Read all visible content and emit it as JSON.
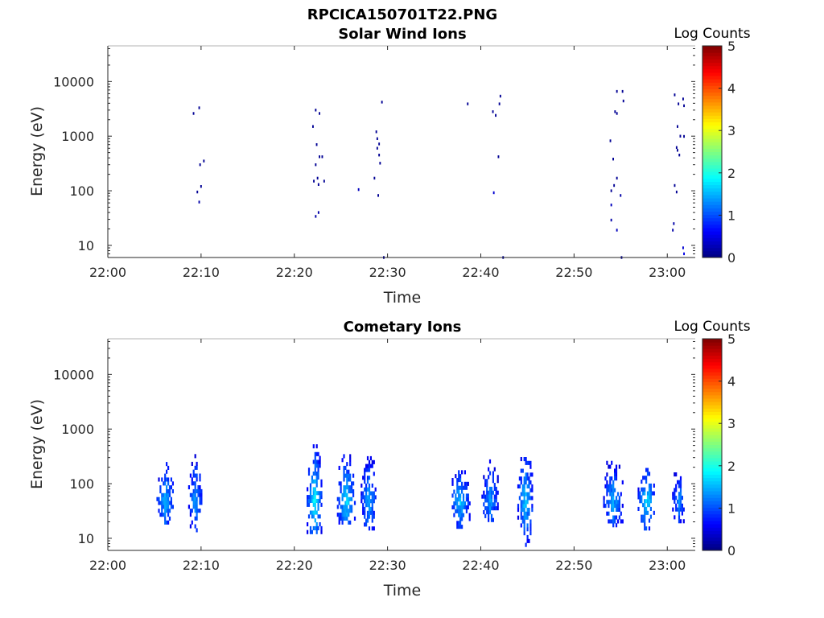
{
  "figure_title": "RPCICA150701T22.PNG",
  "colorbar": {
    "label": "Log Counts",
    "ticks": [
      "0",
      "1",
      "2",
      "3",
      "4",
      "5"
    ],
    "range": [
      0,
      5
    ],
    "colormap": "jet"
  },
  "chart_data": [
    {
      "type": "heatmap",
      "title": "Solar Wind Ions",
      "xlabel": "Time",
      "ylabel": "Energy (eV)",
      "xticks": [
        "22:00",
        "22:10",
        "22:20",
        "22:30",
        "22:40",
        "22:50",
        "23:00"
      ],
      "xlim_minutes": [
        0,
        63
      ],
      "yscale": "log",
      "ylim": [
        6,
        45000
      ],
      "yticks": [
        "10",
        "100",
        "1000",
        "10000"
      ],
      "value_range": [
        0,
        5
      ],
      "cells": [
        [
          9.2,
          2600,
          0.1
        ],
        [
          9.8,
          3300,
          0.1
        ],
        [
          10.3,
          350,
          0.1
        ],
        [
          9.9,
          300,
          0.1
        ],
        [
          10.0,
          120,
          0.1
        ],
        [
          9.6,
          95,
          0.1
        ],
        [
          9.8,
          62,
          0.2
        ],
        [
          22.0,
          1500,
          0.1
        ],
        [
          22.3,
          3000,
          0.1
        ],
        [
          22.7,
          2600,
          0.1
        ],
        [
          22.4,
          700,
          0.1
        ],
        [
          22.7,
          420,
          0.1
        ],
        [
          23.0,
          420,
          0.1
        ],
        [
          22.3,
          300,
          0.1
        ],
        [
          22.1,
          150,
          0.1
        ],
        [
          22.5,
          170,
          0.1
        ],
        [
          22.6,
          130,
          0.1
        ],
        [
          23.2,
          150,
          0.1
        ],
        [
          22.6,
          40,
          0.2
        ],
        [
          22.3,
          34,
          0.2
        ],
        [
          26.9,
          105,
          0.3
        ],
        [
          28.6,
          170,
          0.1
        ],
        [
          28.8,
          1200,
          0.1
        ],
        [
          28.9,
          900,
          0.1
        ],
        [
          29.1,
          720,
          0.1
        ],
        [
          28.9,
          600,
          0.1
        ],
        [
          29.1,
          450,
          0.1
        ],
        [
          29.2,
          320,
          0.1
        ],
        [
          29.0,
          82,
          0.1
        ],
        [
          29.4,
          4200,
          0.1
        ],
        [
          29.6,
          6,
          0.1
        ],
        [
          38.6,
          3900,
          0.1
        ],
        [
          41.3,
          2800,
          0.1
        ],
        [
          41.6,
          2400,
          0.1
        ],
        [
          42.0,
          3900,
          0.1
        ],
        [
          42.1,
          5400,
          0.1
        ],
        [
          41.9,
          420,
          0.1
        ],
        [
          41.4,
          92,
          0.4
        ],
        [
          42.4,
          6,
          0.1
        ],
        [
          53.9,
          820,
          0.1
        ],
        [
          54.2,
          380,
          0.1
        ],
        [
          54.6,
          2600,
          0.1
        ],
        [
          54.4,
          2800,
          0.1
        ],
        [
          54.6,
          6600,
          0.1
        ],
        [
          55.2,
          6600,
          0.1
        ],
        [
          55.3,
          4400,
          0.1
        ],
        [
          54.6,
          170,
          0.1
        ],
        [
          54.3,
          125,
          0.1
        ],
        [
          54.0,
          100,
          0.1
        ],
        [
          55.0,
          82,
          0.2
        ],
        [
          54.0,
          55,
          0.3
        ],
        [
          54.0,
          29,
          0.2
        ],
        [
          54.6,
          19,
          0.3
        ],
        [
          55.1,
          6,
          0.1
        ],
        [
          60.8,
          5700,
          0.1
        ],
        [
          61.2,
          3900,
          0.1
        ],
        [
          61.7,
          4800,
          0.1
        ],
        [
          61.8,
          3600,
          0.1
        ],
        [
          61.1,
          1500,
          0.1
        ],
        [
          61.4,
          1000,
          0.1
        ],
        [
          61.8,
          990,
          0.1
        ],
        [
          61.0,
          620,
          0.1
        ],
        [
          61.1,
          550,
          0.1
        ],
        [
          61.3,
          450,
          0.1
        ],
        [
          60.8,
          125,
          0.1
        ],
        [
          61.0,
          95,
          0.1
        ],
        [
          60.7,
          25,
          0.2
        ],
        [
          60.6,
          19,
          0.2
        ],
        [
          61.7,
          9,
          0.4
        ],
        [
          61.8,
          7,
          0.5
        ]
      ]
    },
    {
      "type": "heatmap",
      "title": "Cometary Ions",
      "xlabel": "Time",
      "ylabel": "Energy (eV)",
      "xticks": [
        "22:00",
        "22:10",
        "22:20",
        "22:30",
        "22:40",
        "22:50",
        "23:00"
      ],
      "xlim_minutes": [
        0,
        63
      ],
      "yscale": "log",
      "ylim": [
        6,
        45000
      ],
      "yticks": [
        "10",
        "100",
        "1000",
        "10000"
      ],
      "value_range": [
        0,
        5
      ],
      "bursts": [
        {
          "center": 6.2,
          "width": 1.8,
          "emin": 18,
          "emax": 230,
          "peak": 1.4
        },
        {
          "center": 9.4,
          "width": 1.4,
          "emin": 13,
          "emax": 300,
          "peak": 1.3
        },
        {
          "center": 22.2,
          "width": 1.6,
          "emin": 12,
          "emax": 470,
          "peak": 1.7
        },
        {
          "center": 25.6,
          "width": 1.9,
          "emin": 18,
          "emax": 330,
          "peak": 1.6
        },
        {
          "center": 28.0,
          "width": 1.6,
          "emin": 14,
          "emax": 280,
          "peak": 1.4
        },
        {
          "center": 37.8,
          "width": 2.0,
          "emin": 15,
          "emax": 180,
          "peak": 1.5
        },
        {
          "center": 41.0,
          "width": 1.7,
          "emin": 20,
          "emax": 250,
          "peak": 1.3
        },
        {
          "center": 44.8,
          "width": 1.6,
          "emin": 7,
          "emax": 420,
          "peak": 1.5
        },
        {
          "center": 54.2,
          "width": 2.0,
          "emin": 16,
          "emax": 240,
          "peak": 1.3
        },
        {
          "center": 57.8,
          "width": 1.8,
          "emin": 14,
          "emax": 220,
          "peak": 1.6
        },
        {
          "center": 61.3,
          "width": 1.4,
          "emin": 19,
          "emax": 160,
          "peak": 1.2
        }
      ]
    }
  ]
}
